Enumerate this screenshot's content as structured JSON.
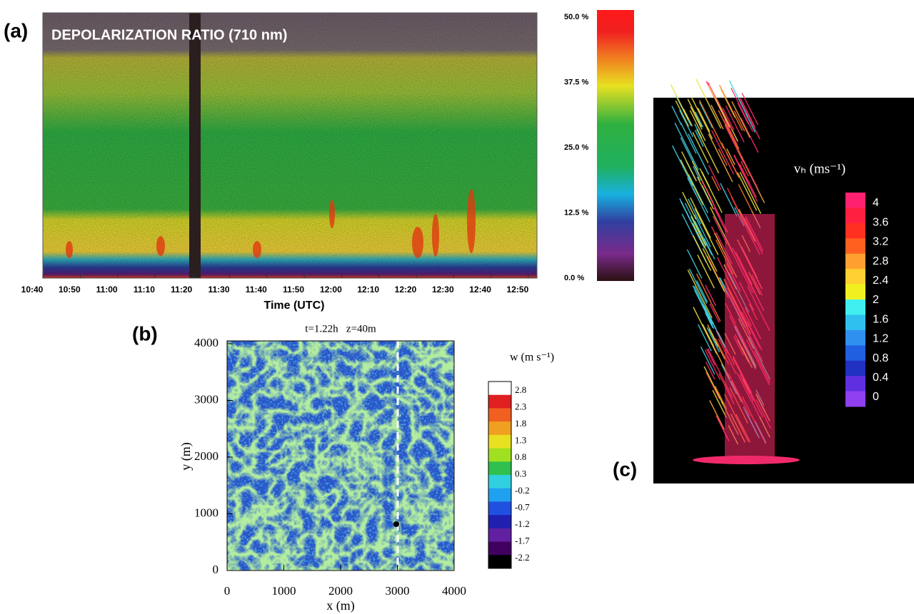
{
  "panel_a": {
    "label": "(a)",
    "title": "DEPOLARIZATION RATIO (710 nm)",
    "x_ticks": [
      "10:40",
      "10:50",
      "11:00",
      "11:10",
      "11:20",
      "11:30",
      "11:40",
      "11:50",
      "12:00",
      "12:10",
      "12:20",
      "12:30",
      "12:40",
      "12:50"
    ],
    "x_label": "Time (UTC)",
    "colorbar_ticks": [
      "50.0 %",
      "37.5 %",
      "25.0 %",
      "12.5 %",
      "0.0 %"
    ]
  },
  "panel_b": {
    "label": "(b)",
    "title": "t=1.22h   z=40m",
    "x_ticks": [
      "0",
      "1000",
      "2000",
      "3000",
      "4000"
    ],
    "y_ticks": [
      "4000",
      "3000",
      "2000",
      "1000",
      "0"
    ],
    "x_label": "x (m)",
    "y_label": "y (m)",
    "colorbar_title": "w (m s⁻¹)",
    "colorbar_ticks": [
      "2.8",
      "2.3",
      "1.8",
      "1.3",
      "0.8",
      "0.3",
      "-0.2",
      "-0.7",
      "-1.2",
      "-1.7",
      "-2.2"
    ]
  },
  "panel_c": {
    "label": "(c)",
    "colorbar_title": "vₕ (ms⁻¹)",
    "colorbar_ticks": [
      "4",
      "3.6",
      "3.2",
      "2.8",
      "2.4",
      "2",
      "1.6",
      "1.2",
      "0.8",
      "0.4",
      "0"
    ]
  }
}
